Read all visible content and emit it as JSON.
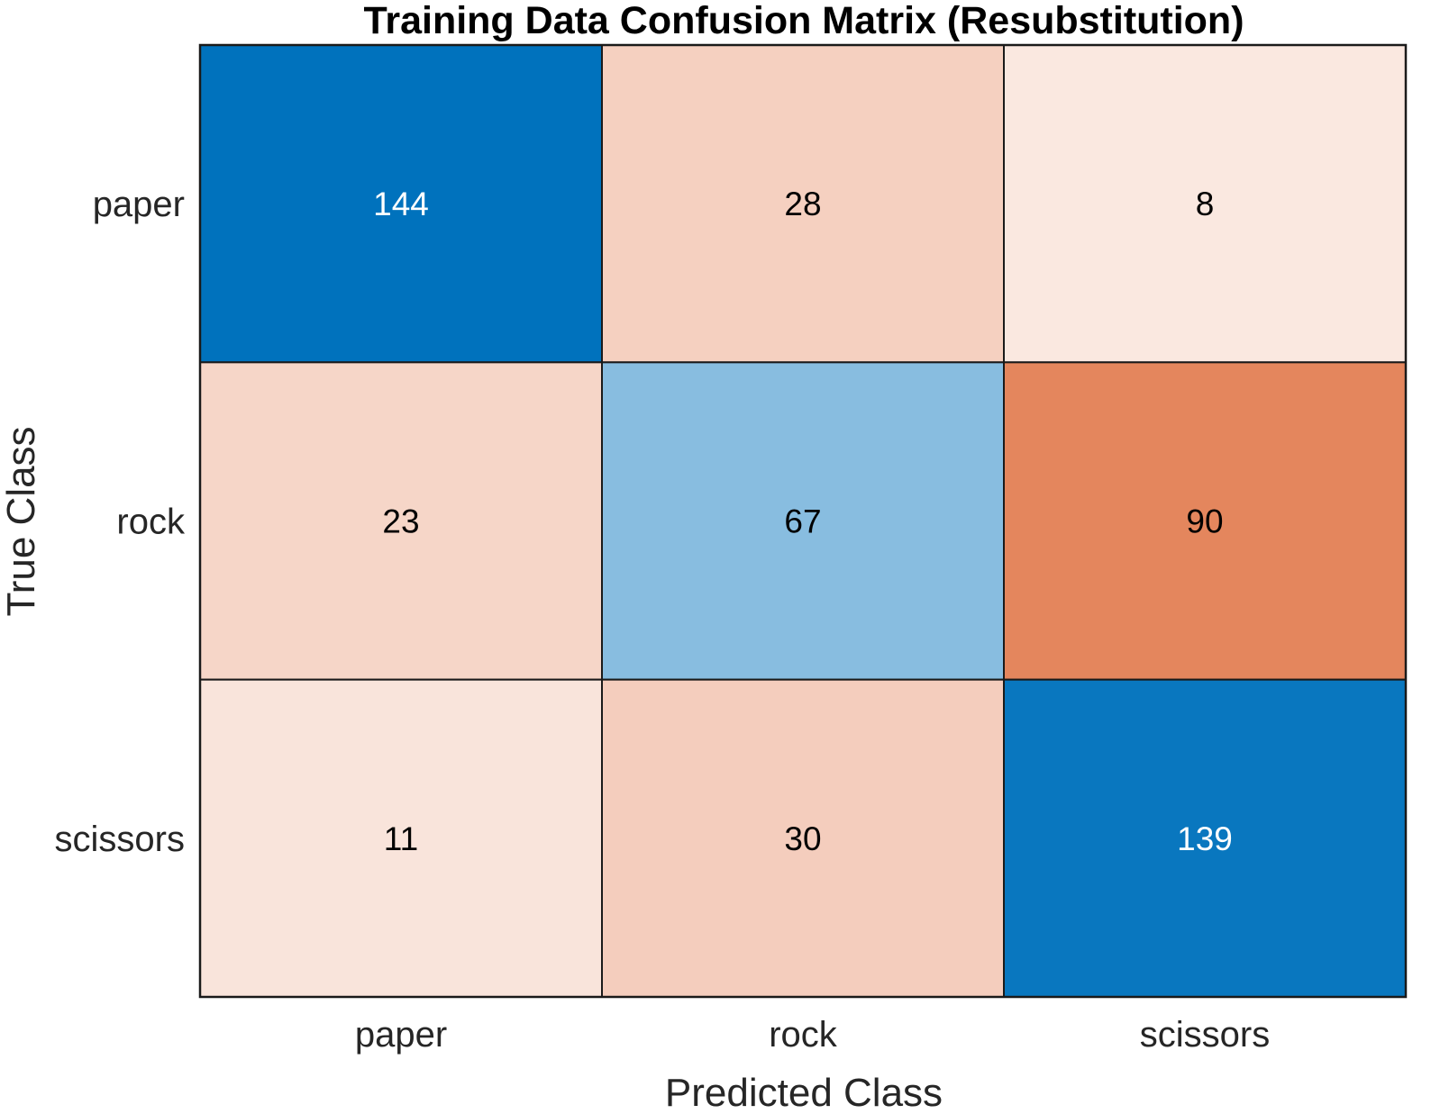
{
  "chart_data": {
    "type": "heatmap",
    "title": "Training Data Confusion Matrix (Resubstitution)",
    "xlabel": "Predicted Class",
    "ylabel": "True Class",
    "x_categories": [
      "paper",
      "rock",
      "scissors"
    ],
    "y_categories": [
      "paper",
      "rock",
      "scissors"
    ],
    "values": [
      [
        144,
        28,
        8
      ],
      [
        23,
        67,
        90
      ],
      [
        11,
        30,
        139
      ]
    ],
    "diagonal_color": "#0072bd",
    "off_diagonal_color": "#d95319",
    "dark_text_color": "#000000",
    "light_text_color": "#ffffff",
    "grid": false
  }
}
